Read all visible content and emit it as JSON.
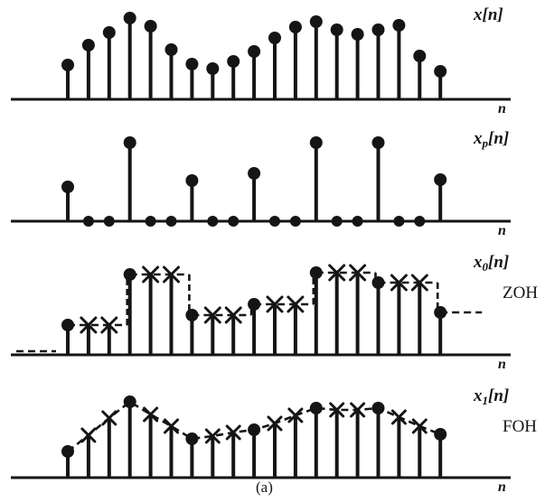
{
  "figure": {
    "caption": "(a)",
    "ink_color": "#151515",
    "background_color": "#ffffff"
  },
  "panels": [
    {
      "label_base": "x",
      "label_sub": "",
      "label_bracket": "[n]",
      "side_label": "",
      "axis_label": "n"
    },
    {
      "label_base": "x",
      "label_sub": "p",
      "label_bracket": "[n]",
      "side_label": "",
      "axis_label": "n"
    },
    {
      "label_base": "x",
      "label_sub": "0",
      "label_bracket": "[n]",
      "side_label": "ZOH",
      "axis_label": "n"
    },
    {
      "label_base": "x",
      "label_sub": "1",
      "label_bracket": "[n]",
      "side_label": "FOH",
      "axis_label": "n"
    }
  ],
  "chart_data": [
    {
      "type": "stem",
      "title": "x[n]",
      "xlabel": "n",
      "marker": "filled-dot",
      "n": [
        0,
        1,
        2,
        3,
        4,
        5,
        6,
        7,
        8,
        9,
        10,
        11,
        12,
        13,
        14,
        15,
        16,
        17,
        18
      ],
      "values": [
        38,
        60,
        74,
        90,
        81,
        55,
        39,
        34,
        42,
        53,
        68,
        80,
        86,
        77,
        72,
        77,
        82,
        48,
        31
      ],
      "ylim": [
        0,
        100
      ],
      "grid": false
    },
    {
      "type": "stem",
      "title": "x_p[n]",
      "xlabel": "n",
      "marker": "filled-dot",
      "sampling_period": 3,
      "note": "impulse-train sampled signal; zero samples drawn as dots on the axis",
      "n": [
        0,
        1,
        2,
        3,
        4,
        5,
        6,
        7,
        8,
        9,
        10,
        11,
        12,
        13,
        14,
        15,
        16,
        17,
        18
      ],
      "values": [
        38,
        0,
        0,
        87,
        0,
        0,
        45,
        0,
        0,
        53,
        0,
        0,
        87,
        0,
        0,
        87,
        0,
        0,
        46
      ],
      "ylim": [
        0,
        100
      ],
      "grid": false
    },
    {
      "type": "stem",
      "title": "x_0[n]",
      "side_label": "ZOH",
      "xlabel": "n",
      "hold": "zoh",
      "marker_rule": "dot at multiples of 3, x-cross at held samples",
      "overlay": "dashed staircase (zero-order hold)",
      "n": [
        0,
        1,
        2,
        3,
        4,
        5,
        6,
        7,
        8,
        9,
        10,
        11,
        12,
        13,
        14,
        15,
        16,
        17,
        18
      ],
      "values": [
        33,
        33,
        33,
        89,
        89,
        89,
        44,
        44,
        44,
        56,
        56,
        56,
        91,
        91,
        91,
        80,
        80,
        80,
        47
      ],
      "ylim": [
        0,
        100
      ],
      "grid": false
    },
    {
      "type": "stem",
      "title": "x_1[n]",
      "side_label": "FOH",
      "xlabel": "n",
      "hold": "foh",
      "marker_rule": "dot at multiples of 3, x-cross at interpolated samples",
      "overlay": "dashed linear interpolation (first-order hold)",
      "n": [
        0,
        1,
        2,
        3,
        4,
        5,
        6,
        7,
        8,
        9,
        10,
        11,
        12,
        13,
        14,
        15,
        16,
        17,
        18
      ],
      "values": [
        29,
        47,
        66,
        84,
        70,
        57,
        43,
        46,
        50,
        53,
        60,
        69,
        77,
        75,
        75,
        77,
        67,
        57,
        48
      ],
      "ylim": [
        0,
        100
      ],
      "grid": false
    }
  ]
}
